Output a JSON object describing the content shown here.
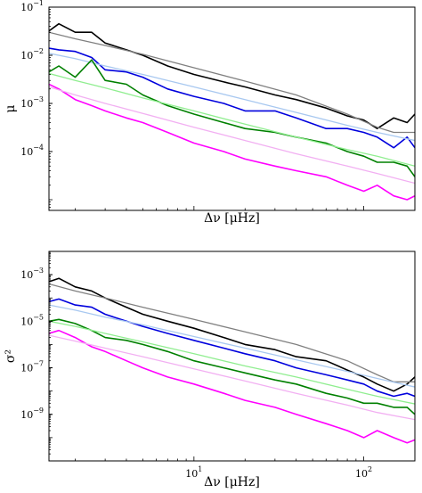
{
  "chart_data": [
    {
      "type": "line",
      "panel": "top",
      "ylabel": "μ",
      "xlabel": "Δν [μHz]",
      "xscale": "log",
      "yscale": "log",
      "xlim": [
        1.4,
        200
      ],
      "ylim": [
        6e-06,
        0.1
      ],
      "show_x_tick_labels": false,
      "y_ticks": [
        {
          "value": 0.1,
          "base": "10",
          "exp": "−1"
        },
        {
          "value": 0.01,
          "base": "10",
          "exp": "−2"
        },
        {
          "value": 0.001,
          "base": "10",
          "exp": "−3"
        },
        {
          "value": 0.0001,
          "base": "10",
          "exp": "−4"
        }
      ],
      "x_ticks": [
        {
          "value": 10,
          "base": "10",
          "exp": "1"
        },
        {
          "value": 100,
          "base": "10",
          "exp": "2"
        }
      ],
      "series": [
        {
          "color": "#000000",
          "kind": "data",
          "x": [
            1.4,
            1.6,
            2,
            2.5,
            3,
            4,
            5,
            7,
            10,
            15,
            20,
            30,
            40,
            60,
            80,
            100,
            120,
            150,
            180,
            200
          ],
          "y": [
            0.032,
            0.045,
            0.03,
            0.03,
            0.018,
            0.013,
            0.01,
            0.006,
            0.004,
            0.0028,
            0.0022,
            0.0015,
            0.0012,
            0.0008,
            0.00055,
            0.00045,
            0.0003,
            0.0005,
            0.0004,
            0.0006
          ]
        },
        {
          "color": "#808080",
          "kind": "fit",
          "x": [
            1.4,
            2,
            3,
            5,
            10,
            20,
            40,
            80,
            120,
            150,
            200
          ],
          "y": [
            0.03,
            0.022,
            0.016,
            0.0105,
            0.0055,
            0.0029,
            0.0015,
            0.0006,
            0.00032,
            0.00025,
            0.00025
          ]
        },
        {
          "color": "#0000dd",
          "kind": "data",
          "x": [
            1.4,
            1.6,
            2,
            2.5,
            3,
            4,
            5,
            7,
            10,
            15,
            20,
            30,
            40,
            60,
            80,
            100,
            120,
            150,
            180,
            200
          ],
          "y": [
            0.014,
            0.013,
            0.012,
            0.009,
            0.005,
            0.0045,
            0.0035,
            0.002,
            0.0014,
            0.001,
            0.0007,
            0.0007,
            0.0005,
            0.0003,
            0.0003,
            0.00025,
            0.0002,
            0.00012,
            0.0002,
            0.00012
          ]
        },
        {
          "color": "#a8c8f0",
          "kind": "fit",
          "x": [
            1.4,
            2,
            3,
            5,
            10,
            20,
            40,
            80,
            120,
            200
          ],
          "y": [
            0.011,
            0.0085,
            0.006,
            0.004,
            0.0022,
            0.0012,
            0.00065,
            0.00035,
            0.00025,
            0.00017
          ]
        },
        {
          "color": "#008000",
          "kind": "data",
          "x": [
            1.4,
            1.6,
            2,
            2.5,
            3,
            4,
            5,
            7,
            10,
            15,
            20,
            30,
            40,
            60,
            80,
            100,
            120,
            150,
            180,
            200
          ],
          "y": [
            0.0045,
            0.006,
            0.0035,
            0.008,
            0.003,
            0.0025,
            0.0015,
            0.0009,
            0.0006,
            0.0004,
            0.0003,
            0.00025,
            0.0002,
            0.00015,
            0.0001,
            8e-05,
            6e-05,
            6e-05,
            5e-05,
            3e-05
          ]
        },
        {
          "color": "#90ee90",
          "kind": "fit",
          "x": [
            1.4,
            2,
            3,
            5,
            10,
            20,
            40,
            80,
            120,
            200
          ],
          "y": [
            0.0042,
            0.003,
            0.0021,
            0.0013,
            0.0007,
            0.00037,
            0.0002,
            0.00011,
            8e-05,
            5e-05
          ]
        },
        {
          "color": "#ff00ff",
          "kind": "data",
          "x": [
            1.4,
            1.6,
            2,
            2.5,
            3,
            4,
            5,
            7,
            10,
            15,
            20,
            30,
            40,
            60,
            80,
            100,
            120,
            150,
            180,
            200
          ],
          "y": [
            0.0025,
            0.002,
            0.0012,
            0.0009,
            0.0007,
            0.0005,
            0.0004,
            0.00025,
            0.00015,
            0.0001,
            7e-05,
            5e-05,
            4e-05,
            3e-05,
            2e-05,
            1.5e-05,
            2e-05,
            1.2e-05,
            1e-05,
            1.2e-05
          ]
        },
        {
          "color": "#f2b0f2",
          "kind": "fit",
          "x": [
            1.4,
            2,
            3,
            5,
            10,
            20,
            40,
            80,
            120,
            200
          ],
          "y": [
            0.0022,
            0.0015,
            0.001,
            0.00062,
            0.00032,
            0.00017,
            9e-05,
            5e-05,
            3.5e-05,
            2.2e-05
          ]
        }
      ]
    },
    {
      "type": "line",
      "panel": "bottom",
      "ylabel": "σ²",
      "xlabel": "Δν [μHz]",
      "xscale": "log",
      "yscale": "log",
      "xlim": [
        1.4,
        200
      ],
      "ylim": [
        1e-11,
        0.01
      ],
      "show_x_tick_labels": true,
      "y_ticks": [
        {
          "value": 0.001,
          "base": "10",
          "exp": "−3"
        },
        {
          "value": 1e-05,
          "base": "10",
          "exp": "−5"
        },
        {
          "value": 1e-07,
          "base": "10",
          "exp": "−7"
        },
        {
          "value": 1e-09,
          "base": "10",
          "exp": "−9"
        }
      ],
      "x_ticks": [
        {
          "value": 10,
          "base": "10",
          "exp": "1"
        },
        {
          "value": 100,
          "base": "10",
          "exp": "2"
        }
      ],
      "series": [
        {
          "color": "#000000",
          "kind": "data",
          "x": [
            1.4,
            1.6,
            2,
            2.5,
            3,
            4,
            5,
            7,
            10,
            15,
            20,
            30,
            40,
            60,
            80,
            100,
            120,
            150,
            180,
            200
          ],
          "y": [
            0.0005,
            0.0007,
            0.0003,
            0.0002,
            0.0001,
            4e-05,
            2e-05,
            1e-05,
            5e-06,
            2e-06,
            1e-06,
            6e-07,
            3e-07,
            2e-07,
            8e-08,
            4e-08,
            2e-08,
            1e-08,
            2e-08,
            4e-08
          ]
        },
        {
          "color": "#808080",
          "kind": "fit",
          "x": [
            1.4,
            2,
            3,
            5,
            10,
            20,
            40,
            80,
            120,
            150,
            200
          ],
          "y": [
            0.0004,
            0.0002,
            0.0001,
            4e-05,
            1.2e-05,
            3.5e-06,
            1e-06,
            2e-07,
            5e-08,
            2.5e-08,
            2.5e-08
          ]
        },
        {
          "color": "#0000dd",
          "kind": "data",
          "x": [
            1.4,
            1.6,
            2,
            2.5,
            3,
            4,
            5,
            7,
            10,
            15,
            20,
            30,
            40,
            60,
            80,
            100,
            120,
            150,
            180,
            200
          ],
          "y": [
            7e-05,
            9e-05,
            5e-05,
            4e-05,
            2e-05,
            1e-05,
            6e-06,
            3e-06,
            1.5e-06,
            7e-07,
            4e-07,
            2e-07,
            1e-07,
            5e-08,
            3e-08,
            2e-08,
            1e-08,
            6e-09,
            8e-09,
            6e-09
          ]
        },
        {
          "color": "#a8c8f0",
          "kind": "fit",
          "x": [
            1.4,
            2,
            3,
            5,
            10,
            20,
            40,
            80,
            120,
            200
          ],
          "y": [
            5e-05,
            3e-05,
            1.5e-05,
            7e-06,
            2.2e-06,
            7e-07,
            2.2e-07,
            7e-08,
            3.5e-08,
            1.5e-08
          ]
        },
        {
          "color": "#008000",
          "kind": "data",
          "x": [
            1.4,
            1.6,
            2,
            2.5,
            3,
            4,
            5,
            7,
            10,
            15,
            20,
            30,
            40,
            60,
            80,
            100,
            120,
            150,
            180,
            200
          ],
          "y": [
            1e-05,
            1.2e-05,
            8e-06,
            4e-06,
            2e-06,
            1.5e-06,
            1e-06,
            5e-07,
            2e-07,
            1e-07,
            6e-08,
            3e-08,
            2e-08,
            8e-09,
            5e-09,
            3e-09,
            3e-09,
            2e-09,
            2e-09,
            1e-09
          ]
        },
        {
          "color": "#90ee90",
          "kind": "fit",
          "x": [
            1.4,
            2,
            3,
            5,
            10,
            20,
            40,
            80,
            120,
            200
          ],
          "y": [
            1e-05,
            6e-06,
            3e-06,
            1.3e-06,
            4e-07,
            1.2e-07,
            4e-08,
            1.2e-08,
            6e-09,
            2.8e-09
          ]
        },
        {
          "color": "#ff00ff",
          "kind": "data",
          "x": [
            1.4,
            1.6,
            2,
            2.5,
            3,
            4,
            5,
            7,
            10,
            15,
            20,
            30,
            40,
            60,
            80,
            100,
            120,
            150,
            180,
            200
          ],
          "y": [
            3e-06,
            4e-06,
            2e-06,
            8e-07,
            5e-07,
            2e-07,
            1e-07,
            4e-08,
            2e-08,
            8e-09,
            4e-09,
            2e-09,
            1e-09,
            4e-10,
            2e-10,
            1e-10,
            2e-10,
            1e-10,
            6e-11,
            8e-11
          ]
        },
        {
          "color": "#f2b0f2",
          "kind": "fit",
          "x": [
            1.4,
            2,
            3,
            5,
            10,
            20,
            40,
            80,
            120,
            200
          ],
          "y": [
            2.5e-06,
            1.4e-06,
            7e-07,
            3e-07,
            9e-08,
            2.7e-08,
            8e-09,
            2.5e-09,
            1.2e-09,
            6e-10
          ]
        }
      ]
    }
  ]
}
